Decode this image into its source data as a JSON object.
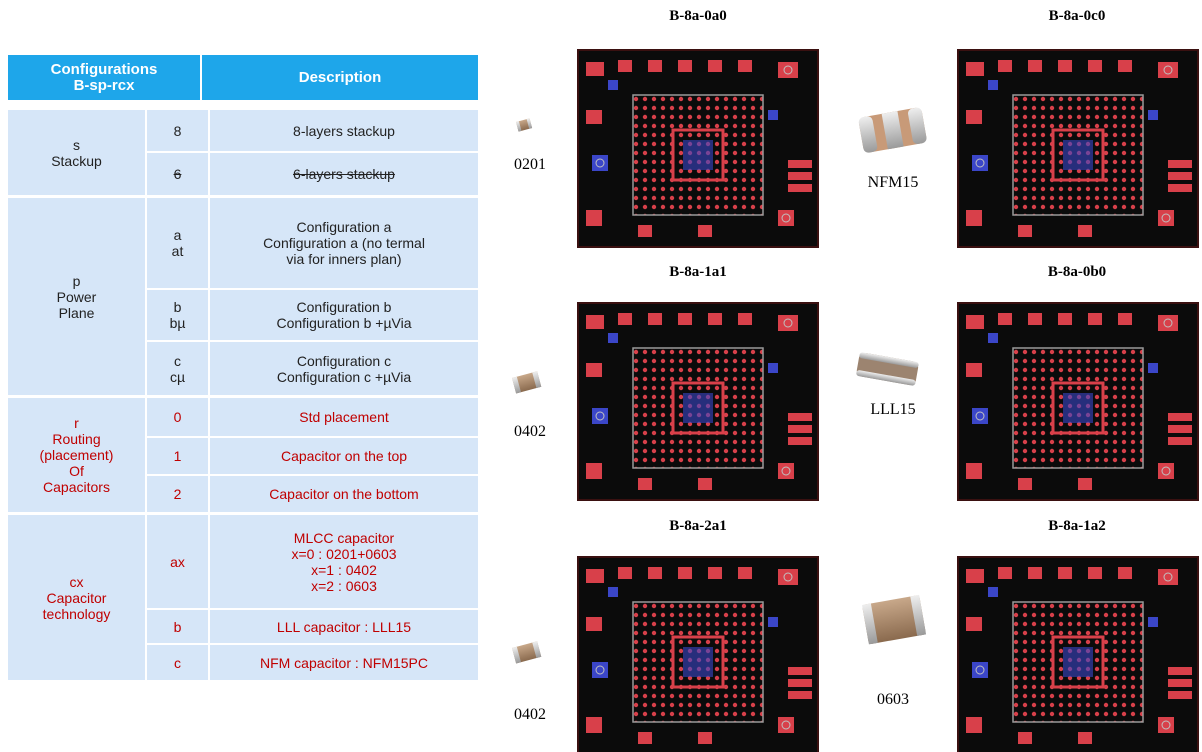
{
  "table": {
    "header": [
      "Configurations\nB-sp-rcx",
      "Description"
    ],
    "groups": [
      {
        "label": "s\nStackup",
        "rows": [
          [
            "8",
            "8-layers stackup"
          ],
          [
            "6",
            "6-layers stackup"
          ]
        ]
      },
      {
        "label": "p\nPower\nPlane",
        "rows": [
          [
            "a\nat",
            "Configuration a\nConfiguration a (no termal\nvia for inners plan)"
          ],
          [
            "b\nbµ",
            "Configuration b\nConfiguration b +µVia"
          ],
          [
            "c\ncµ",
            "Configuration c\nConfiguration c +µVia"
          ]
        ]
      },
      {
        "label": "r\nRouting\n(placement)\nOf\nCapacitors",
        "rows": [
          [
            "0",
            "Std placement"
          ],
          [
            "1",
            "Capacitor on the top"
          ],
          [
            "2",
            "Capacitor on the bottom"
          ]
        ]
      },
      {
        "label": "cx\nCapacitor\ntechnology",
        "rows": [
          [
            "ax",
            "MLCC capacitor\n  x=0 : 0201+0603\n    x=1 : 0402\n    x=2 : 0603"
          ],
          [
            "b",
            "LLL capacitor : LLL15"
          ],
          [
            "c",
            "NFM capacitor : NFM15PC"
          ]
        ]
      }
    ]
  },
  "figures": [
    "B-8a-0a0",
    "B-8a-0c0",
    "B-8a-1a1",
    "B-8a-0b0",
    "B-8a-2a1",
    "B-8a-1a2"
  ],
  "parts": [
    "0201",
    "NFM15",
    "0402",
    "LLL15",
    "0402",
    "0603"
  ]
}
